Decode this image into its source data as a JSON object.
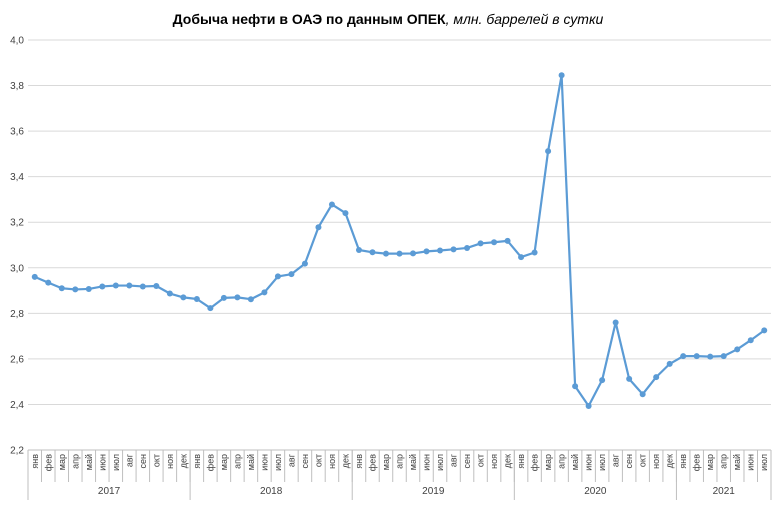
{
  "chart_data": {
    "type": "line",
    "title_main": "Добыча  нефти в ОАЭ по данным ОПЕК",
    "title_sub": ", млн. баррелей в сутки",
    "ylim": [
      2.2,
      4.0
    ],
    "yticks": [
      "2,2",
      "2,4",
      "2,6",
      "2,8",
      "3,0",
      "3,2",
      "3,4",
      "3,6",
      "3,8",
      "4,0"
    ],
    "grid": true,
    "legend": "none",
    "color": "#5b9bd5",
    "years": [
      {
        "label": "2017",
        "months": 12
      },
      {
        "label": "2018",
        "months": 12
      },
      {
        "label": "2019",
        "months": 12
      },
      {
        "label": "2020",
        "months": 12
      },
      {
        "label": "2021",
        "months": 7
      }
    ],
    "categories": [
      "янв",
      "фев",
      "мар",
      "апр",
      "май",
      "июн",
      "июл",
      "авг",
      "сен",
      "окт",
      "ноя",
      "дек",
      "янв",
      "фев",
      "мар",
      "апр",
      "май",
      "июн",
      "июл",
      "авг",
      "сен",
      "окт",
      "ноя",
      "дек",
      "янв",
      "фев",
      "мар",
      "апр",
      "май",
      "июн",
      "июл",
      "авг",
      "сен",
      "окт",
      "ноя",
      "дек",
      "янв",
      "фев",
      "мар",
      "апр",
      "май",
      "июн",
      "июл",
      "авг",
      "сен",
      "окт",
      "ноя",
      "дек",
      "янв",
      "фев",
      "мар",
      "апр",
      "май",
      "июн",
      "июл"
    ],
    "values": [
      2.96,
      2.935,
      2.91,
      2.905,
      2.907,
      2.918,
      2.922,
      2.922,
      2.918,
      2.92,
      2.887,
      2.87,
      2.863,
      2.823,
      2.868,
      2.87,
      2.862,
      2.892,
      2.962,
      2.972,
      3.018,
      3.178,
      3.278,
      3.24,
      3.078,
      3.068,
      3.062,
      3.062,
      3.063,
      3.072,
      3.076,
      3.081,
      3.087,
      3.107,
      3.112,
      3.118,
      3.047,
      3.067,
      3.512,
      3.845,
      2.48,
      2.393,
      2.507,
      2.76,
      2.512,
      2.445,
      2.52,
      2.578,
      2.612,
      2.612,
      2.61,
      2.612,
      2.642,
      2.682,
      2.725
    ]
  }
}
